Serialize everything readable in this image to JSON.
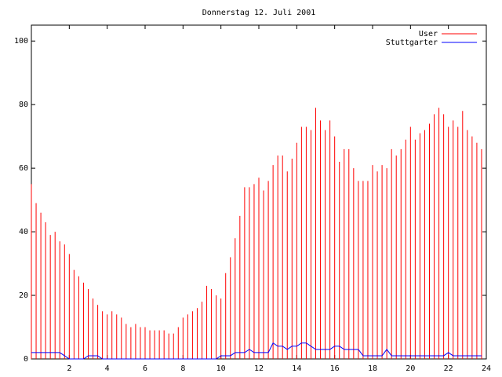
{
  "chart_data": {
    "type": "impulses-line",
    "title": "Donnerstag 12. Juli 2001",
    "x": [
      0,
      0.25,
      0.5,
      0.75,
      1,
      1.25,
      1.5,
      1.75,
      2,
      2.25,
      2.5,
      2.75,
      3,
      3.25,
      3.5,
      3.75,
      4,
      4.25,
      4.5,
      4.75,
      5,
      5.25,
      5.5,
      5.75,
      6,
      6.25,
      6.5,
      6.75,
      7,
      7.25,
      7.5,
      7.75,
      8,
      8.25,
      8.5,
      8.75,
      9,
      9.25,
      9.5,
      9.75,
      10,
      10.25,
      10.5,
      10.75,
      11,
      11.25,
      11.5,
      11.75,
      12,
      12.25,
      12.5,
      12.75,
      13,
      13.25,
      13.5,
      13.75,
      14,
      14.25,
      14.5,
      14.75,
      15,
      15.25,
      15.5,
      15.75,
      16,
      16.25,
      16.5,
      16.75,
      17,
      17.25,
      17.5,
      17.75,
      18,
      18.25,
      18.5,
      18.75,
      19,
      19.25,
      19.5,
      19.75,
      20,
      20.25,
      20.5,
      20.75,
      21,
      21.25,
      21.5,
      21.75,
      22,
      22.25,
      22.5,
      22.75,
      23,
      23.25,
      23.5,
      23.75
    ],
    "series": [
      {
        "name": "User",
        "style": "impulses",
        "color": "#ff0000",
        "values": [
          55,
          49,
          46,
          43,
          39,
          40,
          37,
          36,
          33,
          28,
          26,
          24,
          22,
          19,
          17,
          15,
          14,
          15,
          14,
          13,
          11,
          10,
          11,
          10,
          10,
          9,
          9,
          9,
          9,
          8,
          8,
          10,
          13,
          14,
          15,
          16,
          18,
          23,
          22,
          20,
          19,
          27,
          32,
          38,
          45,
          54,
          54,
          55,
          57,
          53,
          56,
          61,
          64,
          64,
          59,
          63,
          68,
          73,
          73,
          72,
          79,
          75,
          72,
          75,
          70,
          62,
          66,
          66,
          60,
          56,
          56,
          56,
          61,
          59,
          61,
          60,
          66,
          64,
          66,
          69,
          73,
          69,
          71,
          72,
          74,
          77,
          79,
          77,
          73,
          75,
          73,
          78,
          72,
          70,
          68,
          66
        ]
      },
      {
        "name": "Stuttgarter",
        "style": "lines",
        "color": "#0000ff",
        "values": [
          2,
          2,
          2,
          2,
          2,
          2,
          2,
          1,
          0,
          0,
          0,
          0,
          1,
          1,
          1,
          0,
          0,
          0,
          0,
          0,
          0,
          0,
          0,
          0,
          0,
          0,
          0,
          0,
          0,
          0,
          0,
          0,
          0,
          0,
          0,
          0,
          0,
          0,
          0,
          0,
          1,
          1,
          1,
          2,
          2,
          2,
          3,
          2,
          2,
          2,
          2,
          5,
          4,
          4,
          3,
          4,
          4,
          5,
          5,
          4,
          3,
          3,
          3,
          3,
          4,
          4,
          3,
          3,
          3,
          3,
          1,
          1,
          1,
          1,
          1,
          3,
          1,
          1,
          1,
          1,
          1,
          1,
          1,
          1,
          1,
          1,
          1,
          1,
          2,
          1,
          1,
          1,
          1,
          1,
          1,
          1
        ]
      }
    ],
    "xlim": [
      0,
      24
    ],
    "xticks": [
      2,
      4,
      6,
      8,
      10,
      12,
      14,
      16,
      18,
      20,
      22,
      24
    ],
    "ylim": [
      0,
      105
    ],
    "yticks": [
      0,
      20,
      40,
      60,
      80,
      100
    ],
    "legend": "top-right"
  }
}
